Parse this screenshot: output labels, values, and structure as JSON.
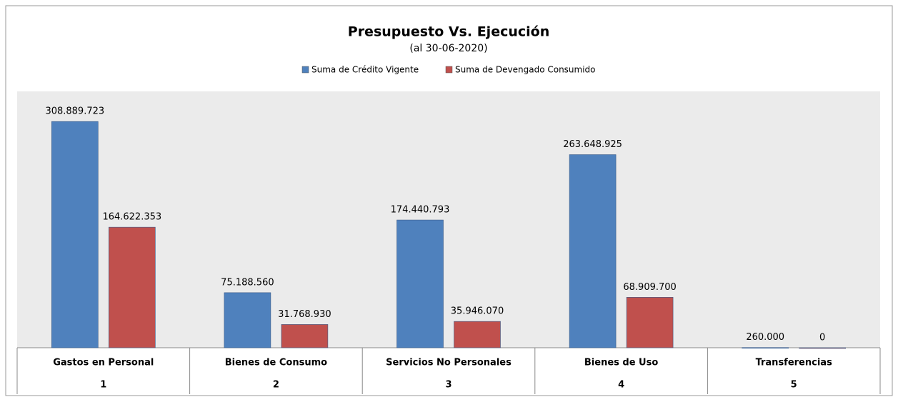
{
  "chart_data": {
    "type": "bar",
    "title": "Presupuesto  Vs.  Ejecución",
    "subtitle": "(al 30-06-2020)",
    "categories": [
      "Gastos en Personal",
      "Bienes de Consumo",
      "Servicios No Personales",
      "Bienes de Uso",
      "Transferencias"
    ],
    "category_numbers": [
      "1",
      "2",
      "3",
      "4",
      "5"
    ],
    "series": [
      {
        "name": "Suma de Crédito Vigente",
        "color": "#4f81bd",
        "values": [
          308889723,
          75188560,
          174440793,
          263648925,
          260000
        ],
        "value_labels": [
          "308.889.723",
          "75.188.560",
          "174.440.793",
          "263.648.925",
          "260.000"
        ]
      },
      {
        "name": "Suma de Devengado Consumido",
        "color": "#c0504d",
        "values": [
          164622353,
          31768930,
          35946070,
          68909700,
          0
        ],
        "value_labels": [
          "164.622.353",
          "31.768.930",
          "35.946.070",
          "68.909.700",
          "0"
        ]
      }
    ],
    "ylim": [
      0,
      350000000
    ]
  }
}
